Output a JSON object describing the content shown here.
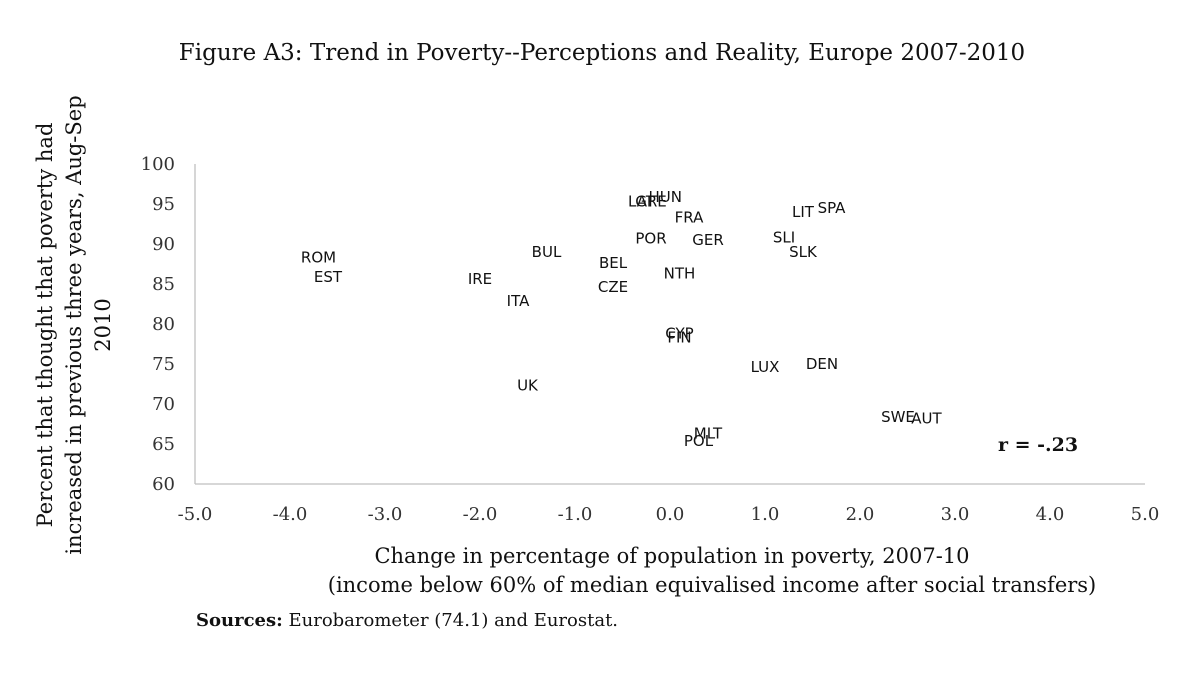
{
  "chart_data": {
    "type": "scatter",
    "title": "Figure A3: Trend in Poverty--Perceptions and Reality, Europe 2007-2010",
    "xlabel_line1": "Change in percentage of population in poverty, 2007-10",
    "xlabel_line2": "(income below 60% of median equivalised income after social transfers)",
    "ylabel_line1": "Percent that thought that poverty had",
    "ylabel_line2": "increased in previous three years, Aug-Sep",
    "ylabel_line3": "2010",
    "xlim": [
      -5.0,
      5.0
    ],
    "ylim": [
      60,
      100
    ],
    "xticks": [
      "-5.0",
      "-4.0",
      "-3.0",
      "-2.0",
      "-1.0",
      "0.0",
      "1.0",
      "2.0",
      "3.0",
      "4.0",
      "5.0"
    ],
    "yticks": [
      "60",
      "65",
      "70",
      "75",
      "80",
      "85",
      "90",
      "95",
      "100"
    ],
    "grid": false,
    "annotation": "r = -.23",
    "points": [
      {
        "label": "ROM",
        "x": -3.7,
        "y": 88.3
      },
      {
        "label": "EST",
        "x": -3.6,
        "y": 85.9
      },
      {
        "label": "IRE",
        "x": -2.0,
        "y": 85.6
      },
      {
        "label": "ITA",
        "x": -1.6,
        "y": 82.9
      },
      {
        "label": "BUL",
        "x": -1.3,
        "y": 89.0
      },
      {
        "label": "UK",
        "x": -1.5,
        "y": 72.3
      },
      {
        "label": "BEL",
        "x": -0.6,
        "y": 87.6
      },
      {
        "label": "CZE",
        "x": -0.6,
        "y": 84.6
      },
      {
        "label": "LAT",
        "x": -0.3,
        "y": 95.3
      },
      {
        "label": "GRE",
        "x": -0.2,
        "y": 95.3
      },
      {
        "label": "HUN",
        "x": -0.05,
        "y": 95.9
      },
      {
        "label": "FRA",
        "x": 0.2,
        "y": 93.3
      },
      {
        "label": "POR",
        "x": -0.2,
        "y": 90.7
      },
      {
        "label": "GER",
        "x": 0.4,
        "y": 90.5
      },
      {
        "label": "NTH",
        "x": 0.1,
        "y": 86.3
      },
      {
        "label": "CYP",
        "x": 0.1,
        "y": 78.8
      },
      {
        "label": "FIN",
        "x": 0.1,
        "y": 78.3
      },
      {
        "label": "LUX",
        "x": 1.0,
        "y": 74.6
      },
      {
        "label": "DEN",
        "x": 1.6,
        "y": 75.0
      },
      {
        "label": "LIT",
        "x": 1.4,
        "y": 94.0
      },
      {
        "label": "SPA",
        "x": 1.7,
        "y": 94.5
      },
      {
        "label": "SLI",
        "x": 1.2,
        "y": 90.8
      },
      {
        "label": "SLK",
        "x": 1.4,
        "y": 89.0
      },
      {
        "label": "SWE",
        "x": 2.4,
        "y": 68.4
      },
      {
        "label": "AUT",
        "x": 2.7,
        "y": 68.2
      },
      {
        "label": "MLT",
        "x": 0.4,
        "y": 66.3
      },
      {
        "label": "POL",
        "x": 0.3,
        "y": 65.4
      }
    ]
  },
  "sources": {
    "label": "Sources:",
    "text": " Eurobarometer (74.1) and Eurostat."
  }
}
